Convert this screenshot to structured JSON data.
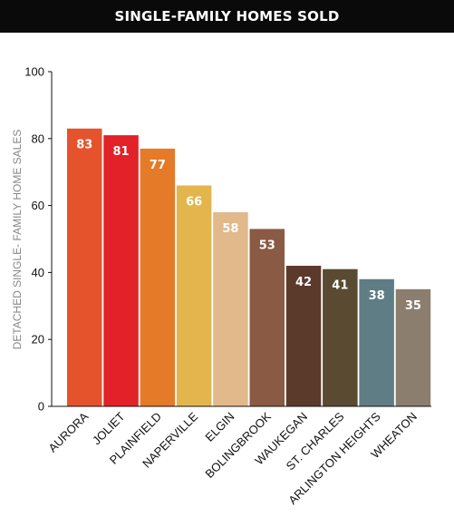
{
  "chart_data": {
    "type": "bar",
    "title": "SINGLE-FAMILY HOMES SOLD",
    "ylabel": "DETACHED SINGLE- FAMILY HOME SALES",
    "xlabel": "",
    "ylim": [
      0,
      100
    ],
    "yticks": [
      "0",
      "20",
      "40",
      "60",
      "80",
      "100"
    ],
    "categories": [
      "AURORA",
      "JOLIET",
      "PLAINFIELD",
      "NAPERVILLE",
      "ELGIN",
      "BOLINGBROOK",
      "WAUKEGAN",
      "ST. CHARLES",
      "ARLINGTON HEIGHTS",
      "WHEATON"
    ],
    "values": [
      83,
      81,
      77,
      66,
      58,
      53,
      42,
      41,
      38,
      35
    ],
    "colors": [
      "#e5532d",
      "#e22128",
      "#e57a28",
      "#e2b64c",
      "#e1b98a",
      "#8a5a45",
      "#5b3a2c",
      "#5a4a32",
      "#5f7d85",
      "#8b7e6e"
    ]
  }
}
